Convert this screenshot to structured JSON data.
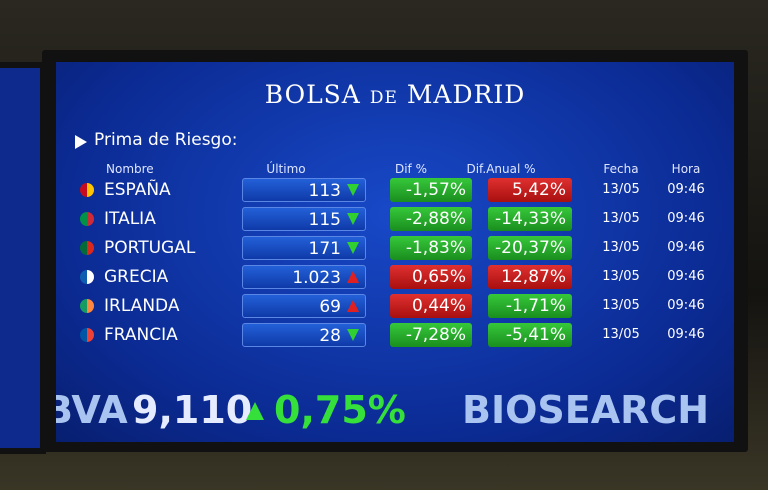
{
  "header": {
    "title": [
      "BOLSA",
      "DE",
      "MADRID"
    ]
  },
  "section": "Prima de Riesgo:",
  "table": {
    "columns": [
      "Nombre",
      "Último",
      "Dif %",
      "Dif.Anual %",
      "Fecha",
      "Hora"
    ],
    "rows": [
      {
        "name": "ESPAÑA",
        "flag": [
          "#c60b1e",
          "#ffc400"
        ],
        "last": "113",
        "trend": "down",
        "dif": "-1,57%",
        "dif_color": "green",
        "anual": "5,42%",
        "anual_color": "red",
        "fecha": "13/05",
        "hora": "09:46"
      },
      {
        "name": "ITALIA",
        "flag": [
          "#009246",
          "#ce2b37"
        ],
        "last": "115",
        "trend": "down",
        "dif": "-2,88%",
        "dif_color": "green",
        "anual": "-14,33%",
        "anual_color": "green",
        "fecha": "13/05",
        "hora": "09:46"
      },
      {
        "name": "PORTUGAL",
        "flag": [
          "#046a38",
          "#da291c"
        ],
        "last": "171",
        "trend": "down",
        "dif": "-1,83%",
        "dif_color": "green",
        "anual": "-20,37%",
        "anual_color": "green",
        "fecha": "13/05",
        "hora": "09:46"
      },
      {
        "name": "GRECIA",
        "flag": [
          "#0d5eaf",
          "#ffffff"
        ],
        "last": "1.023",
        "trend": "up",
        "dif": "0,65%",
        "dif_color": "red",
        "anual": "12,87%",
        "anual_color": "red",
        "fecha": "13/05",
        "hora": "09:46"
      },
      {
        "name": "IRLANDA",
        "flag": [
          "#169b62",
          "#ff883e"
        ],
        "last": "69",
        "trend": "up",
        "dif": "0,44%",
        "dif_color": "red",
        "anual": "-1,71%",
        "anual_color": "green",
        "fecha": "13/05",
        "hora": "09:46"
      },
      {
        "name": "FRANCIA",
        "flag": [
          "#0055a4",
          "#ef4135"
        ],
        "last": "28",
        "trend": "down",
        "dif": "-7,28%",
        "dif_color": "green",
        "anual": "-5,41%",
        "anual_color": "green",
        "fecha": "13/05",
        "hora": "09:46"
      }
    ]
  },
  "ticker": {
    "left": "BVA",
    "value": "9,110",
    "trend": "up",
    "change": "0,75%",
    "right": "BIOSEARCH"
  }
}
